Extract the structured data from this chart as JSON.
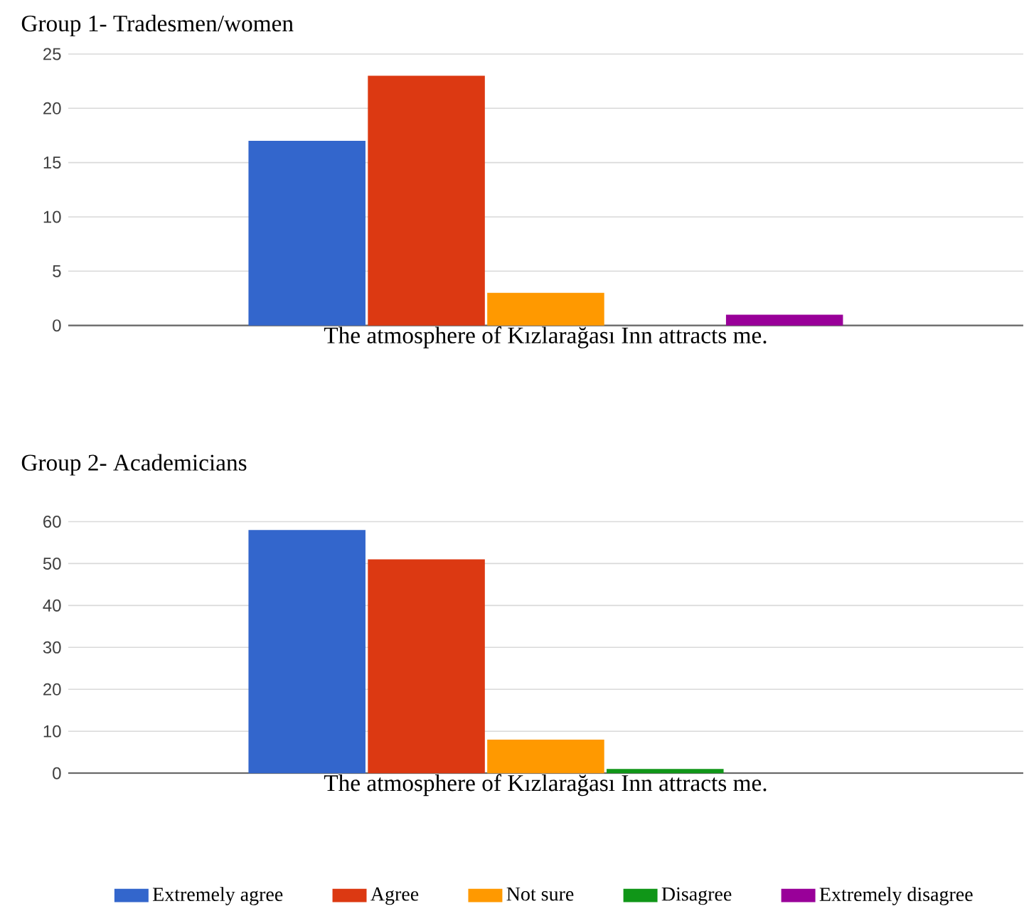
{
  "chart_data": [
    {
      "type": "bar",
      "title": "Group 1- Tradesmen/women",
      "categories": [
        "The atmosphere of Kızlarağası Inn attracts me."
      ],
      "ylim": [
        0,
        25
      ],
      "yticks": [
        0,
        5,
        10,
        15,
        20,
        25
      ],
      "grid": "y",
      "legend": false,
      "series": [
        {
          "color": "#3366cc",
          "values": [
            17
          ]
        },
        {
          "color": "#dc3912",
          "values": [
            23
          ]
        },
        {
          "color": "#ff9900",
          "values": [
            3
          ]
        },
        {
          "color": "#109618",
          "values": [
            0
          ]
        },
        {
          "color": "#990099",
          "values": [
            1
          ]
        }
      ]
    },
    {
      "type": "bar",
      "title": "Group 2- Academicians",
      "categories": [
        "The atmosphere of Kızlarağası Inn attracts me."
      ],
      "ylim": [
        0,
        60
      ],
      "yticks": [
        0,
        10,
        20,
        30,
        40,
        50,
        60
      ],
      "grid": "y",
      "legend": "bottom",
      "series": [
        {
          "name": "Extremely agree",
          "color": "#3366cc",
          "values": [
            58
          ]
        },
        {
          "name": "Agree",
          "color": "#dc3912",
          "values": [
            51
          ]
        },
        {
          "name": "Not sure",
          "color": "#ff9900",
          "values": [
            8
          ]
        },
        {
          "name": "Disagree",
          "color": "#109618",
          "values": [
            1
          ]
        },
        {
          "name": "Extremely disagree",
          "color": "#990099",
          "values": [
            0
          ]
        }
      ]
    }
  ]
}
